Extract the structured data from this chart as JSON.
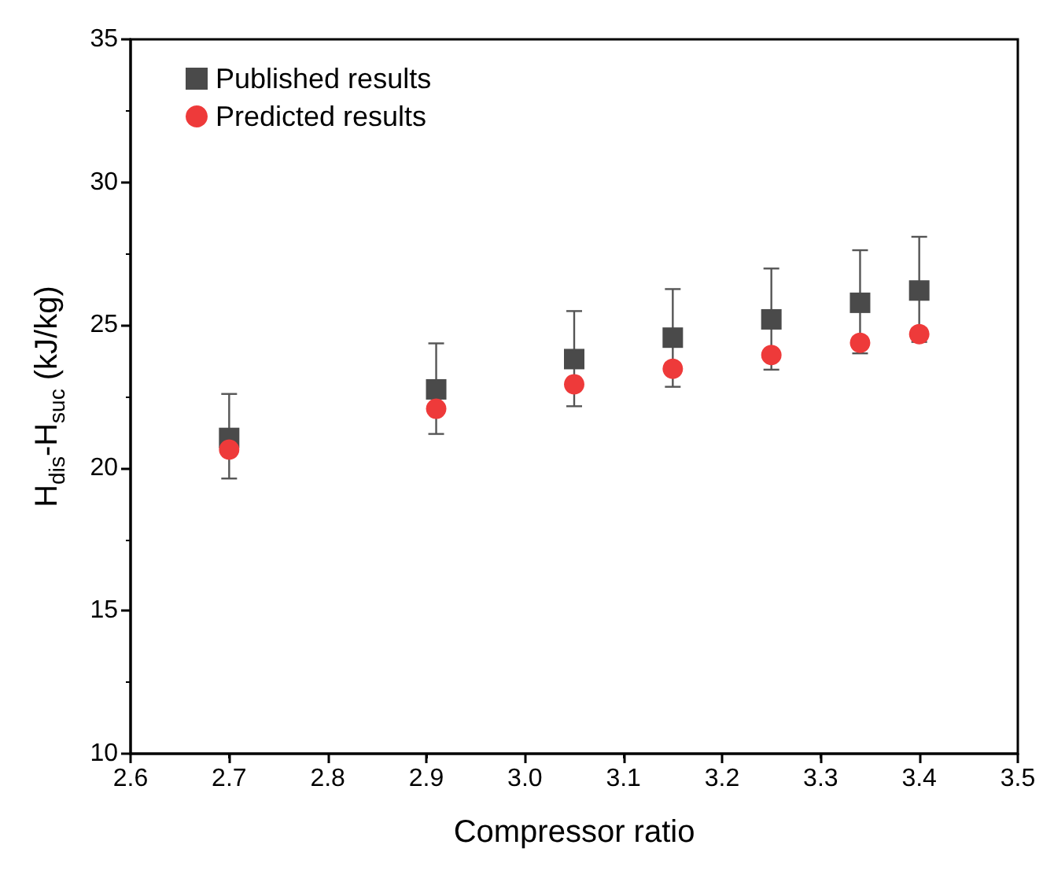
{
  "chart_data": {
    "type": "scatter",
    "xlabel": "Compressor ratio",
    "ylabel": "H$_{dis}$-H$_{suc}$ (kJ/kg)",
    "xlim": [
      2.6,
      3.5
    ],
    "xticks": [
      2.6,
      2.7,
      2.8,
      2.9,
      {
        "value": 3,
        "label": "3.0"
      },
      3.1,
      3.2,
      3.3,
      3.4,
      3.5
    ],
    "ylim": [
      10,
      35
    ],
    "yticks": [
      10,
      15,
      20,
      25,
      30,
      35
    ],
    "x": [
      2.7,
      2.91,
      3.05,
      3.15,
      3.25,
      3.34,
      3.4
    ],
    "series": [
      {
        "name": "Published results",
        "color": "#4a4a4a",
        "marker": "square",
        "values": [
          21.05,
          22.75,
          23.81,
          24.56,
          25.2,
          25.78,
          26.21
        ],
        "errors": [
          [
            19.63,
            22.59
          ],
          [
            21.19,
            24.36
          ],
          [
            22.16,
            25.49
          ],
          [
            22.84,
            26.26
          ],
          [
            23.44,
            26.98
          ],
          [
            24.01,
            27.62
          ],
          [
            24.41,
            28.09
          ]
        ]
      },
      {
        "name": "Predicted results",
        "color": "#ee3a3a",
        "marker": "circle",
        "values": [
          20.64,
          22.07,
          22.93,
          23.47,
          23.95,
          24.38,
          24.68
        ]
      }
    ],
    "legend": "top left",
    "grid": false
  }
}
